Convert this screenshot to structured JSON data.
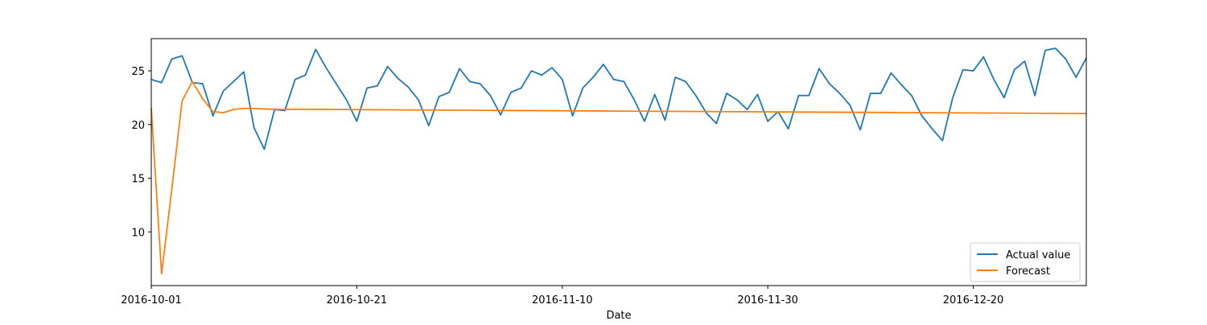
{
  "chart_data": {
    "type": "line",
    "title": "",
    "xlabel": "Date",
    "ylabel": "",
    "xlim": [
      "2016-10-01",
      "2016-12-31"
    ],
    "ylim": [
      5,
      28
    ],
    "x_ticks": [
      "2016-10-01",
      "2016-10-21",
      "2016-11-10",
      "2016-11-30",
      "2016-12-20"
    ],
    "y_ticks": [
      10,
      15,
      20,
      25
    ],
    "legend": {
      "position": "lower-right",
      "entries": [
        "Actual value",
        "Forecast"
      ]
    },
    "grid": false,
    "x": [
      "2016-10-01",
      "2016-10-02",
      "2016-10-03",
      "2016-10-04",
      "2016-10-05",
      "2016-10-06",
      "2016-10-07",
      "2016-10-08",
      "2016-10-09",
      "2016-10-10",
      "2016-10-11",
      "2016-10-12",
      "2016-10-13",
      "2016-10-14",
      "2016-10-15",
      "2016-10-16",
      "2016-10-17",
      "2016-10-18",
      "2016-10-19",
      "2016-10-20",
      "2016-10-21",
      "2016-10-22",
      "2016-10-23",
      "2016-10-24",
      "2016-10-25",
      "2016-10-26",
      "2016-10-27",
      "2016-10-28",
      "2016-10-29",
      "2016-10-30",
      "2016-10-31",
      "2016-11-01",
      "2016-11-02",
      "2016-11-03",
      "2016-11-04",
      "2016-11-05",
      "2016-11-06",
      "2016-11-07",
      "2016-11-08",
      "2016-11-09",
      "2016-11-10",
      "2016-11-11",
      "2016-11-12",
      "2016-11-13",
      "2016-11-14",
      "2016-11-15",
      "2016-11-16",
      "2016-11-17",
      "2016-11-18",
      "2016-11-19",
      "2016-11-20",
      "2016-11-21",
      "2016-11-22",
      "2016-11-23",
      "2016-11-24",
      "2016-11-25",
      "2016-11-26",
      "2016-11-27",
      "2016-11-28",
      "2016-11-29",
      "2016-11-30",
      "2016-12-01",
      "2016-12-02",
      "2016-12-03",
      "2016-12-04",
      "2016-12-05",
      "2016-12-06",
      "2016-12-07",
      "2016-12-08",
      "2016-12-09",
      "2016-12-10",
      "2016-12-11",
      "2016-12-12",
      "2016-12-13",
      "2016-12-14",
      "2016-12-15",
      "2016-12-16",
      "2016-12-17",
      "2016-12-18",
      "2016-12-19",
      "2016-12-20",
      "2016-12-21",
      "2016-12-22",
      "2016-12-23",
      "2016-12-24",
      "2016-12-25",
      "2016-12-26",
      "2016-12-27",
      "2016-12-28",
      "2016-12-29",
      "2016-12-30",
      "2016-12-31"
    ],
    "series": [
      {
        "name": "Actual value",
        "color": "#1f77b4",
        "values": [
          24.2,
          23.9,
          26.1,
          26.4,
          23.9,
          23.8,
          20.8,
          23.1,
          24.0,
          24.9,
          19.7,
          17.7,
          21.4,
          21.3,
          24.2,
          24.6,
          27.0,
          25.3,
          23.8,
          22.3,
          20.3,
          23.4,
          23.6,
          25.4,
          24.3,
          23.5,
          22.3,
          19.9,
          22.6,
          23.0,
          25.2,
          24.0,
          23.8,
          22.7,
          20.9,
          23.0,
          23.4,
          25.0,
          24.6,
          25.3,
          24.2,
          20.8,
          23.4,
          24.4,
          25.6,
          24.2,
          24.0,
          22.3,
          20.3,
          22.8,
          20.4,
          24.4,
          24.0,
          22.7,
          21.1,
          20.1,
          22.9,
          22.3,
          21.4,
          22.8,
          20.3,
          21.2,
          19.6,
          22.7,
          22.7,
          25.2,
          23.8,
          22.9,
          21.8,
          19.5,
          22.9,
          22.9,
          24.8,
          23.7,
          22.7,
          20.8,
          19.6,
          18.5,
          22.5,
          25.1,
          25.0,
          26.3,
          24.2,
          22.5,
          25.1,
          25.9,
          22.7,
          26.9,
          27.1,
          26.1,
          24.4,
          26.2
        ]
      },
      {
        "name": "Forecast",
        "color": "#ff7f0e",
        "values": [
          21.5,
          6.1,
          14.0,
          22.2,
          24.0,
          22.4,
          21.2,
          21.1,
          21.4,
          21.5,
          21.5,
          21.45,
          21.42,
          21.4,
          21.42,
          21.42,
          21.41,
          21.41,
          21.4,
          21.4,
          21.39,
          21.38,
          21.37,
          21.37,
          21.36,
          21.36,
          21.35,
          21.35,
          21.34,
          21.34,
          21.33,
          21.33,
          21.32,
          21.32,
          21.31,
          21.31,
          21.3,
          21.3,
          21.29,
          21.29,
          21.28,
          21.27,
          21.27,
          21.26,
          21.26,
          21.25,
          21.25,
          21.24,
          21.24,
          21.23,
          21.23,
          21.22,
          21.22,
          21.21,
          21.21,
          21.2,
          21.2,
          21.19,
          21.19,
          21.18,
          21.18,
          21.17,
          21.17,
          21.16,
          21.16,
          21.15,
          21.15,
          21.14,
          21.14,
          21.13,
          21.13,
          21.12,
          21.12,
          21.11,
          21.11,
          21.1,
          21.1,
          21.09,
          21.09,
          21.08,
          21.08,
          21.07,
          21.07,
          21.06,
          21.06,
          21.05,
          21.05,
          21.04,
          21.04,
          21.03,
          21.03,
          21.02
        ]
      }
    ]
  }
}
